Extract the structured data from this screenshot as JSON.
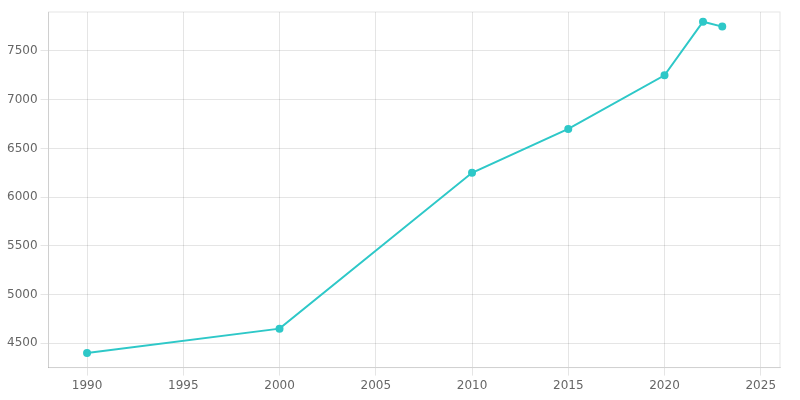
{
  "chart_data": {
    "type": "line",
    "x": [
      1990,
      2000,
      2010,
      2015,
      2020,
      2022,
      2023
    ],
    "values": [
      4400,
      4650,
      6250,
      6700,
      7250,
      7800,
      7750
    ],
    "color": "#2ec8c8",
    "marker": "circle",
    "xlim": [
      1988,
      2026
    ],
    "ylim": [
      4250,
      7900
    ],
    "xticks": [
      1990,
      1995,
      2000,
      2005,
      2010,
      2015,
      2020,
      2025
    ],
    "yticks": [
      4500,
      5000,
      5500,
      6000,
      6500,
      7000,
      7500
    ],
    "grid": true
  }
}
